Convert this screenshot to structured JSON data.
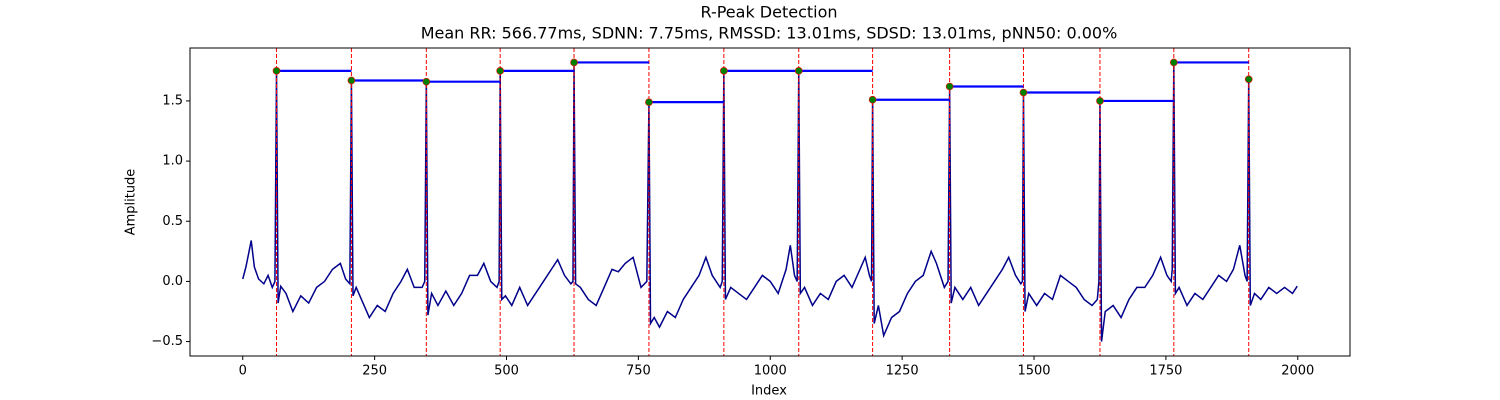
{
  "chart_data": {
    "type": "line",
    "title": "R-Peak Detection",
    "subtitle": "Mean RR: 566.77ms, SDNN: 7.75ms, RMSSD: 13.01ms, SDSD: 13.01ms, pNN50: 0.00%",
    "x_label": "Index",
    "y_label": "Amplitude",
    "xlim": [
      -100,
      2099
    ],
    "ylim": [
      -0.62,
      1.94
    ],
    "xticks": [
      0,
      250,
      500,
      750,
      1000,
      1250,
      1500,
      1750,
      2000
    ],
    "yticks": [
      {
        "value": -0.5,
        "label": "−0.5"
      },
      {
        "value": 0,
        "label": "0.0"
      },
      0.5,
      {
        "value": 1,
        "label": "1.0"
      },
      1.5
    ],
    "signal": {
      "color": "#00008b",
      "x": [
        0,
        6,
        12,
        16,
        22,
        30,
        40,
        48,
        56,
        61,
        64,
        67,
        72,
        82,
        95,
        110,
        125,
        140,
        155,
        170,
        185,
        195,
        203,
        206,
        209,
        215,
        225,
        240,
        255,
        270,
        285,
        300,
        312,
        325,
        340,
        345,
        348,
        351,
        358,
        370,
        385,
        400,
        415,
        430,
        445,
        457,
        470,
        482,
        486,
        488,
        491,
        498,
        510,
        525,
        540,
        555,
        570,
        585,
        597,
        610,
        622,
        626,
        628,
        631,
        640,
        655,
        670,
        685,
        700,
        712,
        725,
        740,
        755,
        766,
        770,
        773,
        780,
        790,
        805,
        820,
        835,
        850,
        865,
        878,
        890,
        905,
        909,
        912,
        915,
        925,
        940,
        955,
        970,
        985,
        1000,
        1015,
        1030,
        1038,
        1046,
        1051,
        1054,
        1057,
        1065,
        1080,
        1095,
        1110,
        1125,
        1140,
        1155,
        1170,
        1180,
        1188,
        1192,
        1194,
        1197,
        1205,
        1215,
        1230,
        1245,
        1260,
        1275,
        1290,
        1305,
        1315,
        1330,
        1337,
        1340,
        1343,
        1350,
        1365,
        1380,
        1395,
        1410,
        1425,
        1440,
        1452,
        1465,
        1475,
        1478,
        1480,
        1483,
        1490,
        1505,
        1520,
        1535,
        1550,
        1565,
        1580,
        1595,
        1610,
        1620,
        1623,
        1625,
        1628,
        1635,
        1650,
        1665,
        1680,
        1695,
        1710,
        1725,
        1740,
        1752,
        1760,
        1762,
        1765,
        1768,
        1775,
        1790,
        1805,
        1820,
        1835,
        1850,
        1865,
        1878,
        1890,
        1900,
        1904,
        1907,
        1910,
        1918,
        1930,
        1945,
        1960,
        1975,
        1990,
        1999
      ],
      "values": [
        0.02,
        0.12,
        0.25,
        0.34,
        0.12,
        0.02,
        -0.02,
        0.05,
        -0.05,
        0.0,
        1.75,
        -0.18,
        -0.04,
        -0.1,
        -0.25,
        -0.12,
        -0.18,
        -0.05,
        0.0,
        0.1,
        0.15,
        0.02,
        -0.02,
        1.67,
        -0.12,
        -0.05,
        -0.15,
        -0.3,
        -0.2,
        -0.25,
        -0.1,
        0.0,
        0.1,
        -0.05,
        -0.05,
        0.0,
        1.66,
        -0.28,
        -0.1,
        -0.2,
        -0.08,
        -0.2,
        -0.1,
        0.05,
        0.05,
        0.15,
        0.0,
        -0.05,
        0.0,
        1.75,
        -0.15,
        -0.12,
        -0.2,
        -0.05,
        -0.2,
        -0.1,
        0.0,
        0.1,
        0.18,
        0.05,
        -0.02,
        0.0,
        1.82,
        -0.02,
        -0.05,
        -0.15,
        -0.2,
        -0.05,
        0.1,
        0.08,
        0.15,
        0.2,
        -0.05,
        0.0,
        1.49,
        -0.35,
        -0.3,
        -0.38,
        -0.25,
        -0.3,
        -0.15,
        -0.05,
        0.05,
        0.2,
        0.05,
        -0.05,
        0.0,
        1.75,
        -0.15,
        -0.05,
        -0.1,
        -0.15,
        -0.05,
        0.05,
        0.0,
        -0.1,
        0.1,
        0.3,
        0.05,
        0.0,
        1.75,
        -0.1,
        -0.05,
        -0.2,
        -0.1,
        -0.15,
        0.0,
        0.05,
        -0.05,
        0.1,
        0.2,
        0.05,
        0.0,
        1.51,
        -0.35,
        -0.2,
        -0.45,
        -0.3,
        -0.25,
        -0.1,
        0.0,
        0.05,
        0.25,
        0.15,
        -0.05,
        0.0,
        1.62,
        -0.18,
        -0.05,
        -0.15,
        -0.05,
        -0.2,
        -0.1,
        0.0,
        0.1,
        0.2,
        0.05,
        -0.02,
        0.0,
        1.57,
        -0.25,
        -0.1,
        -0.2,
        -0.1,
        -0.15,
        0.05,
        0.0,
        -0.05,
        -0.15,
        -0.2,
        -0.15,
        0.0,
        1.5,
        -0.5,
        -0.25,
        -0.2,
        -0.3,
        -0.15,
        -0.05,
        -0.05,
        0.05,
        0.2,
        0.05,
        0.0,
        0.1,
        1.82,
        -0.1,
        -0.05,
        -0.2,
        -0.1,
        -0.15,
        -0.05,
        0.05,
        0.0,
        0.1,
        0.3,
        0.05,
        0.0,
        1.68,
        -0.2,
        -0.1,
        -0.15,
        -0.05,
        -0.1,
        -0.05,
        -0.1,
        -0.04
      ]
    },
    "peaks": {
      "color": "#008000",
      "edge_color": "#ff0000",
      "line_color": "#ff0000",
      "rr_color": "#0000ff",
      "x": [
        64,
        206,
        348,
        488,
        628,
        770,
        912,
        1054,
        1194,
        1340,
        1480,
        1625,
        1765,
        1907
      ],
      "values": [
        1.75,
        1.67,
        1.66,
        1.75,
        1.82,
        1.49,
        1.75,
        1.75,
        1.51,
        1.62,
        1.57,
        1.5,
        1.82,
        1.68
      ]
    }
  }
}
